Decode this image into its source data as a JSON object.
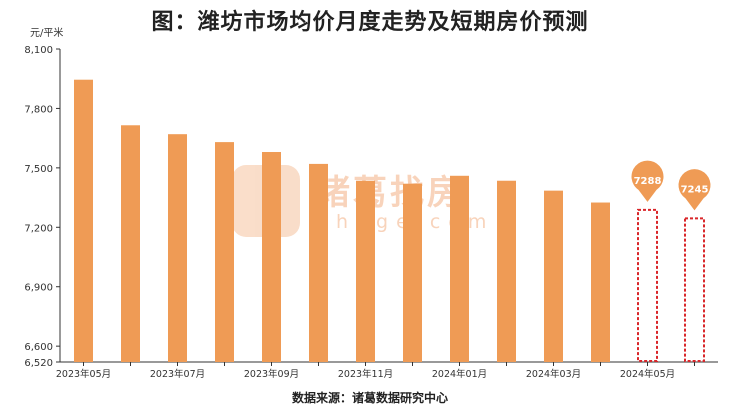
{
  "title": "图：潍坊市场均价月度走势及短期房价预测",
  "unit_label": "元/平米",
  "source_label": "数据来源：诸葛数据研究中心",
  "watermark": {
    "text": "诸葛找房",
    "sub": "zhuge.com"
  },
  "colors": {
    "bar": "#ef9b55",
    "forecast": "#d9262a",
    "axis": "#333333"
  },
  "chart_data": {
    "type": "bar",
    "title": "图：潍坊市场均价月度走势及短期房价预测",
    "ylabel": "元/平米",
    "ylim": [
      6520,
      8100
    ],
    "yticks": [
      6520,
      6600,
      6900,
      7200,
      7500,
      7800,
      8100
    ],
    "ytick_labels": [
      "6,520",
      "6,600",
      "6,900",
      "7,200",
      "7,500",
      "7,800",
      "8,100"
    ],
    "grid": false,
    "categories": [
      "2023年05月",
      "2023年06月",
      "2023年07月",
      "2023年08月",
      "2023年09月",
      "2023年10月",
      "2023年11月",
      "2023年12月",
      "2024年01月",
      "2024年02月",
      "2024年03月",
      "2024年04月",
      "2024年05月",
      "2024年06月"
    ],
    "xtick_labels": [
      "2023年05月",
      "",
      "2023年07月",
      "",
      "2023年09月",
      "",
      "2023年11月",
      "",
      "2024年01月",
      "",
      "2024年03月",
      "",
      "2024年05月",
      ""
    ],
    "series": [
      {
        "type": "actual",
        "values": [
          7945,
          7715,
          7670,
          7630,
          7580,
          7520,
          7435,
          7420,
          7460,
          7435,
          7385,
          7325,
          null,
          null
        ]
      },
      {
        "type": "forecast",
        "values": [
          null,
          null,
          null,
          null,
          null,
          null,
          null,
          null,
          null,
          null,
          null,
          null,
          7288,
          7245
        ],
        "labels": [
          "7288",
          "7245"
        ]
      }
    ]
  }
}
